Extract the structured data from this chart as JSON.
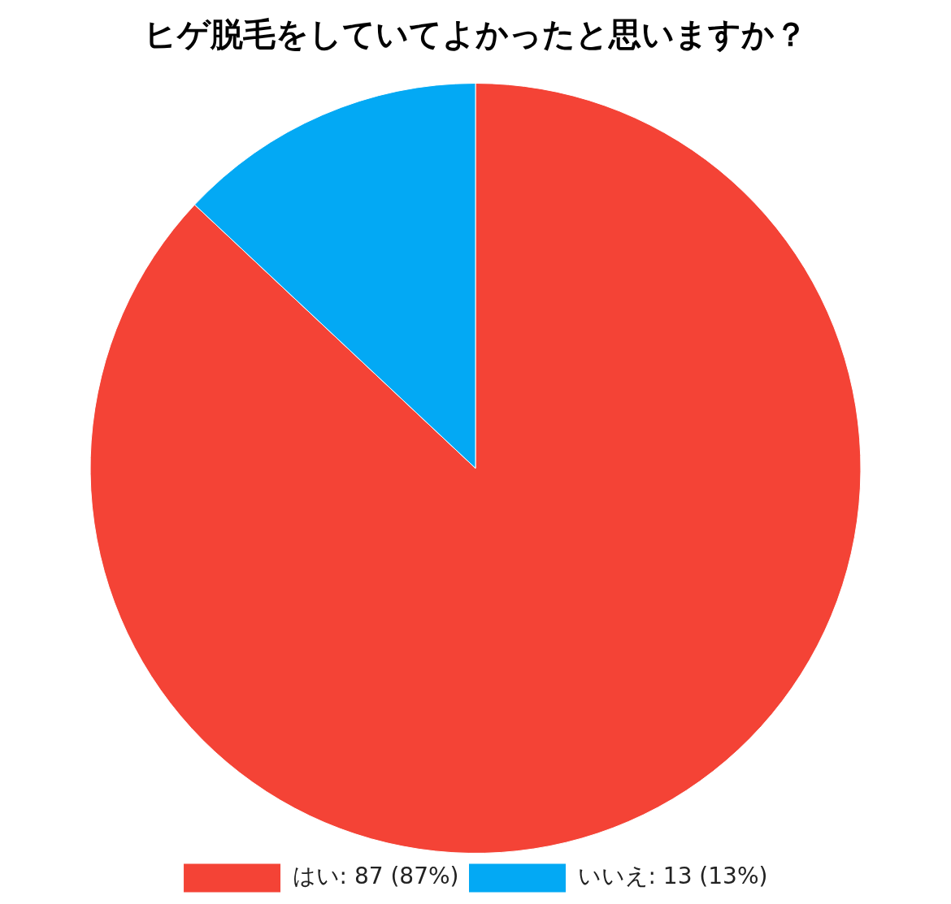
{
  "chart_data": {
    "type": "pie",
    "title": "ヒゲ脱毛をしていてよかったと思いますか？",
    "categories": [
      "はい",
      "いいえ"
    ],
    "values": [
      87,
      13
    ],
    "value_labels": [
      "87 (87%)",
      "13 (13%)"
    ],
    "colors": [
      "#f44336",
      "#03a9f4"
    ],
    "legend": "bottom"
  }
}
